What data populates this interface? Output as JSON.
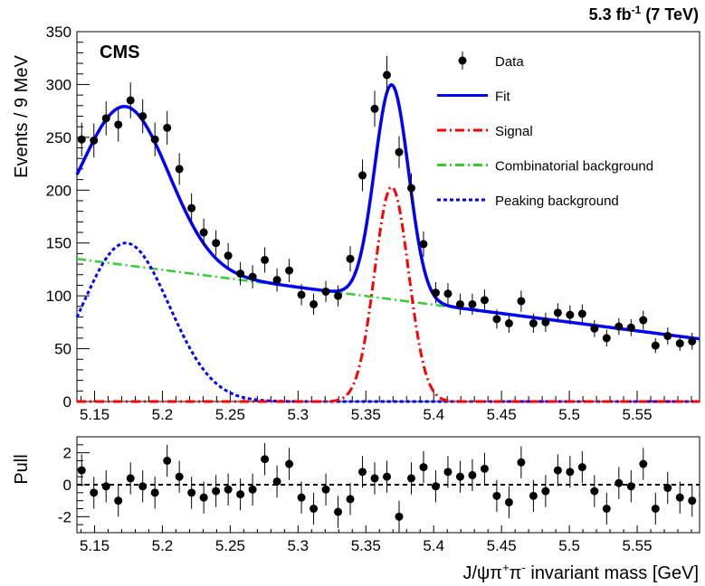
{
  "luminosity_label": "5.3 fb",
  "luminosity_sup": "-1",
  "energy_label": " (7 TeV)",
  "experiment_label": "CMS",
  "chart_data": [
    {
      "type": "scatter",
      "ylabel": "Events / 9 MeV",
      "xlim": [
        5.137,
        5.596
      ],
      "ylim": [
        0,
        350
      ],
      "xticks": [
        5.15,
        5.2,
        5.25,
        5.3,
        5.35,
        5.4,
        5.45,
        5.5,
        5.55
      ],
      "xtick_labels": [
        "5.15",
        "5.2",
        "5.25",
        "5.3",
        "5.35",
        "5.4",
        "5.45",
        "5.5",
        "5.55"
      ],
      "yticks": [
        0,
        50,
        100,
        150,
        200,
        250,
        300,
        350
      ],
      "ytick_labels": [
        "0",
        "50",
        "100",
        "150",
        "200",
        "250",
        "300",
        "350"
      ],
      "legend_position": "top-right",
      "legend": [
        {
          "label": "Data",
          "style": "marker",
          "color": "#000000"
        },
        {
          "label": "Fit",
          "style": "solid",
          "color": "#0000ff"
        },
        {
          "label": "Signal",
          "style": "dashdot",
          "color": "#ff0000"
        },
        {
          "label": "Combinatorial background",
          "style": "dashdot",
          "color": "#33cc33"
        },
        {
          "label": "Peaking background",
          "style": "dotted",
          "color": "#0000ff"
        }
      ],
      "data": {
        "x": [
          5.1405,
          5.1495,
          5.1585,
          5.1675,
          5.1765,
          5.1855,
          5.1945,
          5.2035,
          5.2125,
          5.2215,
          5.2305,
          5.2395,
          5.2485,
          5.2575,
          5.2665,
          5.2755,
          5.2845,
          5.2935,
          5.3025,
          5.3115,
          5.3205,
          5.3295,
          5.3385,
          5.3475,
          5.3565,
          5.3655,
          5.3745,
          5.3835,
          5.3925,
          5.4015,
          5.4105,
          5.4195,
          5.4285,
          5.4375,
          5.4465,
          5.4555,
          5.4645,
          5.4735,
          5.4825,
          5.4915,
          5.5005,
          5.5095,
          5.5185,
          5.5275,
          5.5365,
          5.5455,
          5.5545,
          5.5635,
          5.5725,
          5.5815,
          5.5905
        ],
        "y": [
          248,
          247,
          268,
          262,
          285,
          270,
          248,
          259,
          220,
          183,
          160,
          150,
          138,
          121,
          118,
          134,
          115,
          124,
          101,
          92,
          104,
          100,
          135,
          214,
          277,
          309,
          236,
          202,
          149,
          103,
          102,
          92,
          92,
          96,
          78,
          74,
          95,
          74,
          75,
          84,
          82,
          83,
          69,
          60,
          71,
          70,
          77,
          53,
          62,
          55,
          57
        ],
        "err": [
          16,
          16,
          16,
          16,
          17,
          16,
          16,
          16,
          15,
          14,
          13,
          12,
          12,
          11,
          11,
          12,
          11,
          11,
          10,
          10,
          10,
          10,
          12,
          15,
          17,
          18,
          15,
          14,
          12,
          10,
          10,
          10,
          10,
          10,
          9,
          9,
          10,
          9,
          9,
          9,
          9,
          9,
          8,
          8,
          8,
          8,
          9,
          7,
          8,
          7,
          8
        ]
      },
      "curves": {
        "x_range": [
          5.137,
          5.596
        ],
        "fit": {
          "color": "#0000ff"
        },
        "signal": {
          "color": "#ff0000",
          "mean": 5.369,
          "sigma": 0.0125,
          "amplitude": 203
        },
        "combinatorial": {
          "color": "#33cc33",
          "value_at_start": 135,
          "slope": -165
        },
        "peaking": {
          "color": "#0000ff",
          "mean": 5.173,
          "sigma": 0.032,
          "amplitude": 150
        }
      }
    },
    {
      "type": "scatter",
      "ylabel": "Pull",
      "xlabel_parts": [
        "J/ψπ",
        "+",
        "π",
        "-",
        " invariant mass [GeV]"
      ],
      "xlim": [
        5.137,
        5.596
      ],
      "ylim": [
        -3,
        3
      ],
      "xticks": [
        5.15,
        5.2,
        5.25,
        5.3,
        5.35,
        5.4,
        5.45,
        5.5,
        5.55
      ],
      "xtick_labels": [
        "5.15",
        "5.2",
        "5.25",
        "5.3",
        "5.35",
        "5.4",
        "5.45",
        "5.5",
        "5.55"
      ],
      "yticks": [
        -2,
        0,
        2
      ],
      "ytick_labels": [
        "-2",
        "0",
        "2"
      ],
      "reference_line": 0,
      "data": {
        "x": [
          5.1405,
          5.1495,
          5.1585,
          5.1675,
          5.1765,
          5.1855,
          5.1945,
          5.2035,
          5.2125,
          5.2215,
          5.2305,
          5.2395,
          5.2485,
          5.2575,
          5.2665,
          5.2755,
          5.2845,
          5.2935,
          5.3025,
          5.3115,
          5.3205,
          5.3295,
          5.3385,
          5.3475,
          5.3565,
          5.3655,
          5.3745,
          5.3835,
          5.3925,
          5.4015,
          5.4105,
          5.4195,
          5.4285,
          5.4375,
          5.4465,
          5.4555,
          5.4645,
          5.4735,
          5.4825,
          5.4915,
          5.5005,
          5.5095,
          5.5185,
          5.5275,
          5.5365,
          5.5455,
          5.5545,
          5.5635,
          5.5725,
          5.5815,
          5.5905
        ],
        "y": [
          0.9,
          -0.5,
          -0.1,
          -1.0,
          0.4,
          -0.1,
          -0.5,
          1.5,
          0.5,
          -0.5,
          -0.8,
          -0.4,
          -0.3,
          -0.6,
          -0.3,
          1.6,
          0.2,
          1.3,
          -0.8,
          -1.5,
          -0.3,
          -1.7,
          -0.9,
          0.8,
          0.4,
          0.5,
          -2.0,
          0.4,
          1.1,
          -0.1,
          0.8,
          0.5,
          0.6,
          1.0,
          -0.7,
          -1.1,
          1.4,
          -0.7,
          -0.4,
          0.9,
          0.8,
          1.1,
          -0.4,
          -1.5,
          0.1,
          -0.1,
          1.3,
          -1.5,
          -0.2,
          -0.8,
          -1.0
        ],
        "err": 1
      }
    }
  ]
}
